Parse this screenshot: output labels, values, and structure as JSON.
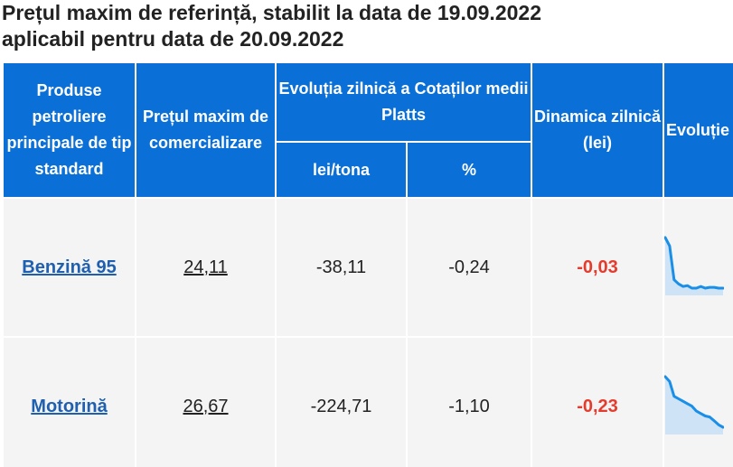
{
  "title": {
    "line1": "Prețul maxim de referință, stabilit la data de 19.09.2022",
    "line2": "aplicabil pentru data de 20.09.2022"
  },
  "table": {
    "headers": {
      "product": "Produse petroliere principale de tip standard",
      "max_price": "Prețul maxim de comercializare",
      "platts": "Evoluția zilnică a Cotaților medii Platts",
      "lei_tona": "lei/tona",
      "percent": "%",
      "dynamics": "Dinamica zilnică (lei)",
      "evolution": "Evoluție"
    },
    "rows": [
      {
        "product": "Benzină 95",
        "max_price": "24,11",
        "lei_tona": "-38,11",
        "percent": "-0,24",
        "dynamics": "-0,03",
        "sparkline": [
          24.7,
          24.6,
          24.2,
          24.15,
          24.12,
          24.13,
          24.1,
          24.1,
          24.12,
          24.1,
          24.11,
          24.11,
          24.1,
          24.1
        ]
      },
      {
        "product": "Motorină",
        "max_price": "26,67",
        "lei_tona": "-224,71",
        "percent": "-1,10",
        "dynamics": "-0,23",
        "sparkline": [
          27.7,
          27.6,
          27.3,
          27.25,
          27.2,
          27.15,
          27.1,
          27.0,
          26.95,
          26.9,
          26.88,
          26.8,
          26.72,
          26.67
        ]
      }
    ]
  },
  "colors": {
    "header_bg": "#0a6fd6",
    "row_bg": "#f4f4f4",
    "link": "#1f5fb0",
    "negative": "#e53b2c",
    "spark_line": "#1a8fe8",
    "spark_fill": "#cfe3f7"
  }
}
